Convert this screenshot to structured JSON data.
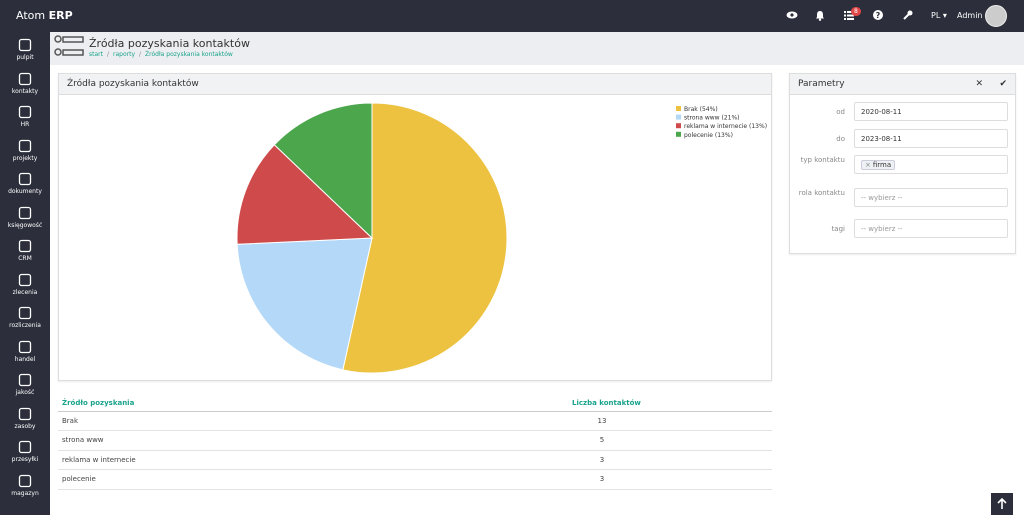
{
  "topbar": {
    "brand": "Atom",
    "brand_bold": "ERP",
    "badge": "8",
    "language": "PL",
    "user": "Admin"
  },
  "sidebar": [
    "pulpit",
    "kontakty",
    "HR",
    "projekty",
    "dokumenty",
    "księgowość",
    "CRM",
    "zlecenia",
    "rozliczenia",
    "handel",
    "jakość",
    "zasoby",
    "przesyłki",
    "magazyn"
  ],
  "header": {
    "title": "Źródła pozyskania kontaktów",
    "breadcrumbs": [
      "start",
      "raporty",
      "Źródła pozyskania kontaktów"
    ]
  },
  "chart_data": {
    "type": "pie",
    "title": "Źródła pozyskania kontaktów",
    "categories": [
      "Brak (54%)",
      "strona www (21%)",
      "reklama w internecie (13%)",
      "polecenie (13%)"
    ],
    "values": [
      54,
      21,
      13,
      13
    ],
    "colors": [
      "#ecc240",
      "#b3d8f8",
      "#cf4a4a",
      "#4ca64c"
    ],
    "legend": "top-right"
  },
  "table": {
    "headers": [
      "Źródło pozyskania",
      "Liczba kontaktów"
    ],
    "rows": [
      [
        "Brak",
        13
      ],
      [
        "strona www",
        5
      ],
      [
        "reklama w internecie",
        3
      ],
      [
        "polecenie",
        3
      ]
    ]
  },
  "params": {
    "title": "Parametry",
    "fields": [
      {
        "label": "od",
        "value": "2020-08-11"
      },
      {
        "label": "do",
        "value": "2023-08-11"
      },
      {
        "label": "typ kontaktu",
        "tag": "firma"
      },
      {
        "label": "rola kontaktu",
        "placeholder": "-- wybierz --"
      },
      {
        "label": "tagi",
        "placeholder": "-- wybierz --"
      }
    ]
  }
}
